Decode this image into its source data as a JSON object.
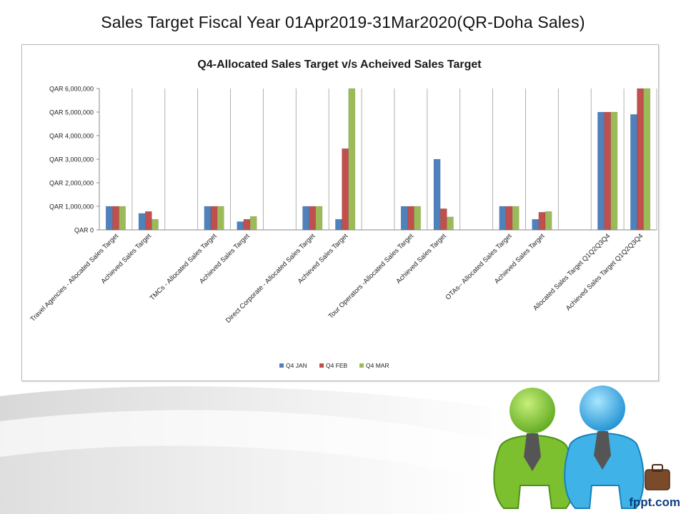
{
  "slide": {
    "title": "Sales Target Fiscal Year 01Apr2019-31Mar2020(QR-Doha Sales)",
    "brand": "fppt.com"
  },
  "chart_data": {
    "type": "bar",
    "title": "Q4-Allocated Sales Target v/s Acheived Sales Target",
    "xlabel": "",
    "ylabel": "",
    "ylim": [
      0,
      6000000
    ],
    "yticks": [
      0,
      1000000,
      2000000,
      3000000,
      4000000,
      5000000,
      6000000
    ],
    "ytick_labels": [
      "QAR 0",
      "QAR 1,000,000",
      "QAR 2,000,000",
      "QAR 3,000,000",
      "QAR 4,000,000",
      "QAR 5,000,000",
      "QAR 6,000,000"
    ],
    "grid": "vertical",
    "legend_position": "bottom",
    "categories": [
      "Travel Agencies - Allocated Sales Target",
      "Achieved Sales Target",
      "",
      "TMCs - Allocated Sales Target",
      "Achieved Sales Target",
      "",
      "Direct Corporate - Allocated Sales Target",
      "Achieved Sales Target",
      "",
      "Tour Operators -Allocated Sales Target",
      "Achieved Sales Target",
      "",
      "OTAs-- Allocated Sales Target",
      "Achieved Sales Target",
      "",
      "Allocated Sales Target Q1Q2Q3Q4",
      "Achieved Sales Target Q1Q2Q3Q4"
    ],
    "series": [
      {
        "name": "Q4 JAN",
        "color": "#4f81bd",
        "values": [
          1000000,
          700000,
          0,
          1000000,
          350000,
          0,
          1000000,
          450000,
          0,
          1000000,
          3000000,
          0,
          1000000,
          450000,
          0,
          5000000,
          4900000
        ]
      },
      {
        "name": "Q4 FEB",
        "color": "#c0504d",
        "values": [
          1000000,
          780000,
          0,
          1000000,
          450000,
          0,
          1000000,
          3450000,
          0,
          1000000,
          900000,
          0,
          1000000,
          750000,
          0,
          5000000,
          6000000
        ]
      },
      {
        "name": "Q4 MAR",
        "color": "#9bbb59",
        "values": [
          1000000,
          450000,
          0,
          1000000,
          570000,
          0,
          1000000,
          6000000,
          0,
          1000000,
          550000,
          0,
          1000000,
          780000,
          0,
          5000000,
          6000000
        ]
      }
    ]
  }
}
